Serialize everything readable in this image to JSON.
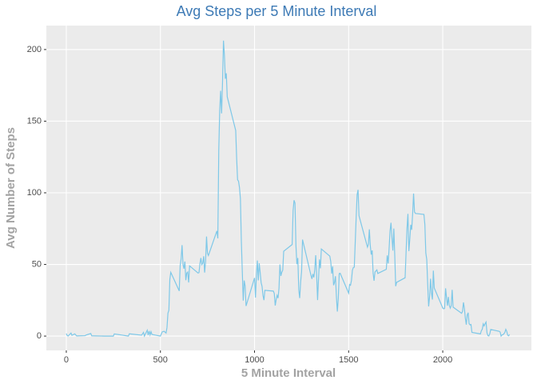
{
  "chart_data": {
    "type": "line",
    "title": "Avg Steps per 5 Minute Interval",
    "xlabel": "5 Minute Interval",
    "ylabel": "Avg Number of Steps",
    "x": [
      0,
      5,
      10,
      25,
      30,
      45,
      55,
      100,
      105,
      130,
      135,
      200,
      250,
      255,
      330,
      335,
      400,
      410,
      415,
      430,
      435,
      440,
      445,
      450,
      455,
      500,
      505,
      510,
      520,
      530,
      535,
      540,
      545,
      550,
      555,
      600,
      605,
      610,
      615,
      620,
      625,
      630,
      635,
      640,
      645,
      650,
      655,
      700,
      705,
      710,
      715,
      720,
      725,
      730,
      735,
      740,
      745,
      750,
      755,
      800,
      805,
      810,
      815,
      820,
      825,
      830,
      835,
      840,
      845,
      850,
      855,
      900,
      905,
      910,
      915,
      920,
      925,
      930,
      935,
      940,
      945,
      950,
      955,
      1000,
      1005,
      1010,
      1015,
      1020,
      1025,
      1030,
      1035,
      1040,
      1045,
      1050,
      1055,
      1100,
      1105,
      1110,
      1115,
      1120,
      1125,
      1130,
      1135,
      1140,
      1145,
      1150,
      1155,
      1200,
      1205,
      1210,
      1215,
      1220,
      1225,
      1230,
      1235,
      1240,
      1245,
      1250,
      1255,
      1300,
      1305,
      1310,
      1315,
      1320,
      1325,
      1330,
      1335,
      1340,
      1345,
      1350,
      1355,
      1400,
      1405,
      1410,
      1415,
      1420,
      1425,
      1430,
      1435,
      1440,
      1445,
      1450,
      1455,
      1500,
      1505,
      1510,
      1515,
      1520,
      1525,
      1530,
      1535,
      1540,
      1545,
      1550,
      1555,
      1600,
      1605,
      1610,
      1615,
      1620,
      1625,
      1630,
      1635,
      1640,
      1645,
      1650,
      1655,
      1700,
      1705,
      1710,
      1715,
      1720,
      1725,
      1730,
      1735,
      1740,
      1745,
      1750,
      1755,
      1800,
      1805,
      1810,
      1815,
      1820,
      1825,
      1830,
      1835,
      1840,
      1845,
      1850,
      1855,
      1900,
      1905,
      1910,
      1915,
      1920,
      1925,
      1930,
      1935,
      1940,
      1945,
      1950,
      1955,
      2000,
      2005,
      2010,
      2015,
      2020,
      2025,
      2030,
      2035,
      2040,
      2045,
      2050,
      2055,
      2100,
      2105,
      2110,
      2115,
      2120,
      2125,
      2130,
      2135,
      2140,
      2145,
      2150,
      2155,
      2200,
      2205,
      2210,
      2215,
      2220,
      2225,
      2230,
      2235,
      2240,
      2245,
      2250,
      2255,
      2300,
      2305,
      2310,
      2315,
      2320,
      2325,
      2330,
      2335,
      2340,
      2345,
      2350,
      2355
    ],
    "values": [
      1.7,
      0.3,
      0.1,
      2.1,
      0.5,
      1.5,
      0.1,
      0.3,
      0.7,
      1.8,
      0.2,
      0,
      0,
      1.5,
      0,
      1.6,
      0.6,
      2.6,
      0,
      4.1,
      0.7,
      3.5,
      0.8,
      3.1,
      1.1,
      0,
      1.6,
      3,
      3.3,
      2.1,
      6,
      16,
      18,
      39.5,
      44.5,
      31.5,
      49.3,
      53.8,
      63.5,
      50,
      47,
      52,
      39,
      44,
      44.7,
      37.4,
      49,
      44,
      44.3,
      50.5,
      54.5,
      49.9,
      51,
      55.7,
      44.3,
      52,
      69.5,
      57.8,
      56.2,
      73.4,
      68.2,
      129.4,
      157.5,
      171.2,
      155.4,
      177.3,
      206.2,
      195.9,
      179.6,
      183.4,
      167,
      143.5,
      124,
      109.1,
      108.1,
      103.7,
      95.9,
      66.2,
      45.2,
      24.8,
      38.8,
      35,
      21,
      40.6,
      26.9,
      42.4,
      52.7,
      38.9,
      50.8,
      44.3,
      37.4,
      34.7,
      28.3,
      25.1,
      31.9,
      31.4,
      29.7,
      21.3,
      25.5,
      28.4,
      26.5,
      33.4,
      50,
      42,
      44.6,
      46,
      59.2,
      63.9,
      87.7,
      94.8,
      92.8,
      63.4,
      50.2,
      54.5,
      32.4,
      26.5,
      37.7,
      45,
      67.3,
      42.3,
      39.9,
      43.3,
      41,
      46.2,
      56.4,
      42.8,
      25.1,
      40,
      53.5,
      47.3,
      60.8,
      55.8,
      52,
      43.6,
      48.7,
      35.5,
      37.5,
      41.8,
      27.5,
      17.1,
      26.1,
      43.6,
      43.8,
      30,
      36,
      35.5,
      38.8,
      46,
      47.8,
      48.1,
      65.3,
      82.9,
      98.7,
      102.1,
      84,
      62.1,
      64.1,
      74.5,
      63.2,
      56.9,
      59.8,
      43.9,
      38.6,
      44.7,
      45.5,
      46.2,
      43.7,
      46.6,
      56.3,
      50.7,
      61.2,
      73.4,
      79.1,
      68.9,
      59.7,
      75.1,
      56.5,
      34.8,
      37.5,
      40.7,
      58,
      74.7,
      85.3,
      59.3,
      67.8,
      77.7,
      74.2,
      85.3,
      99.5,
      86.6,
      85.6,
      84.9,
      77.8,
      58,
      53.4,
      36.3,
      20.7,
      27.4,
      40,
      30.2,
      25.5,
      45.7,
      33.5,
      19.6,
      19,
      19.3,
      33.3,
      26.8,
      21.2,
      27.3,
      21.3,
      19.5,
      21.3,
      32.3,
      20.2,
      15.9,
      17.2,
      23.5,
      19.2,
      12.5,
      8,
      14.7,
      16.3,
      8.7,
      7.8,
      8.1,
      2.6,
      1.5,
      3.7,
      4.8,
      8.5,
      7.1,
      8.7,
      9.8,
      2.2,
      0.3,
      0.1,
      1.6,
      4.6,
      3.3,
      2.8,
      0,
      0.8,
      1,
      1.6,
      2.6,
      4.7,
      3.3,
      0.6,
      0.2,
      1.1
    ],
    "color": "#7ec8e8",
    "xlim": [
      -106,
      2471
    ],
    "ylim": [
      -10,
      216.7
    ],
    "xticks": [
      0,
      500,
      1000,
      1500,
      2000
    ],
    "yticks": [
      0,
      50,
      100,
      150,
      200
    ],
    "grid": true
  }
}
